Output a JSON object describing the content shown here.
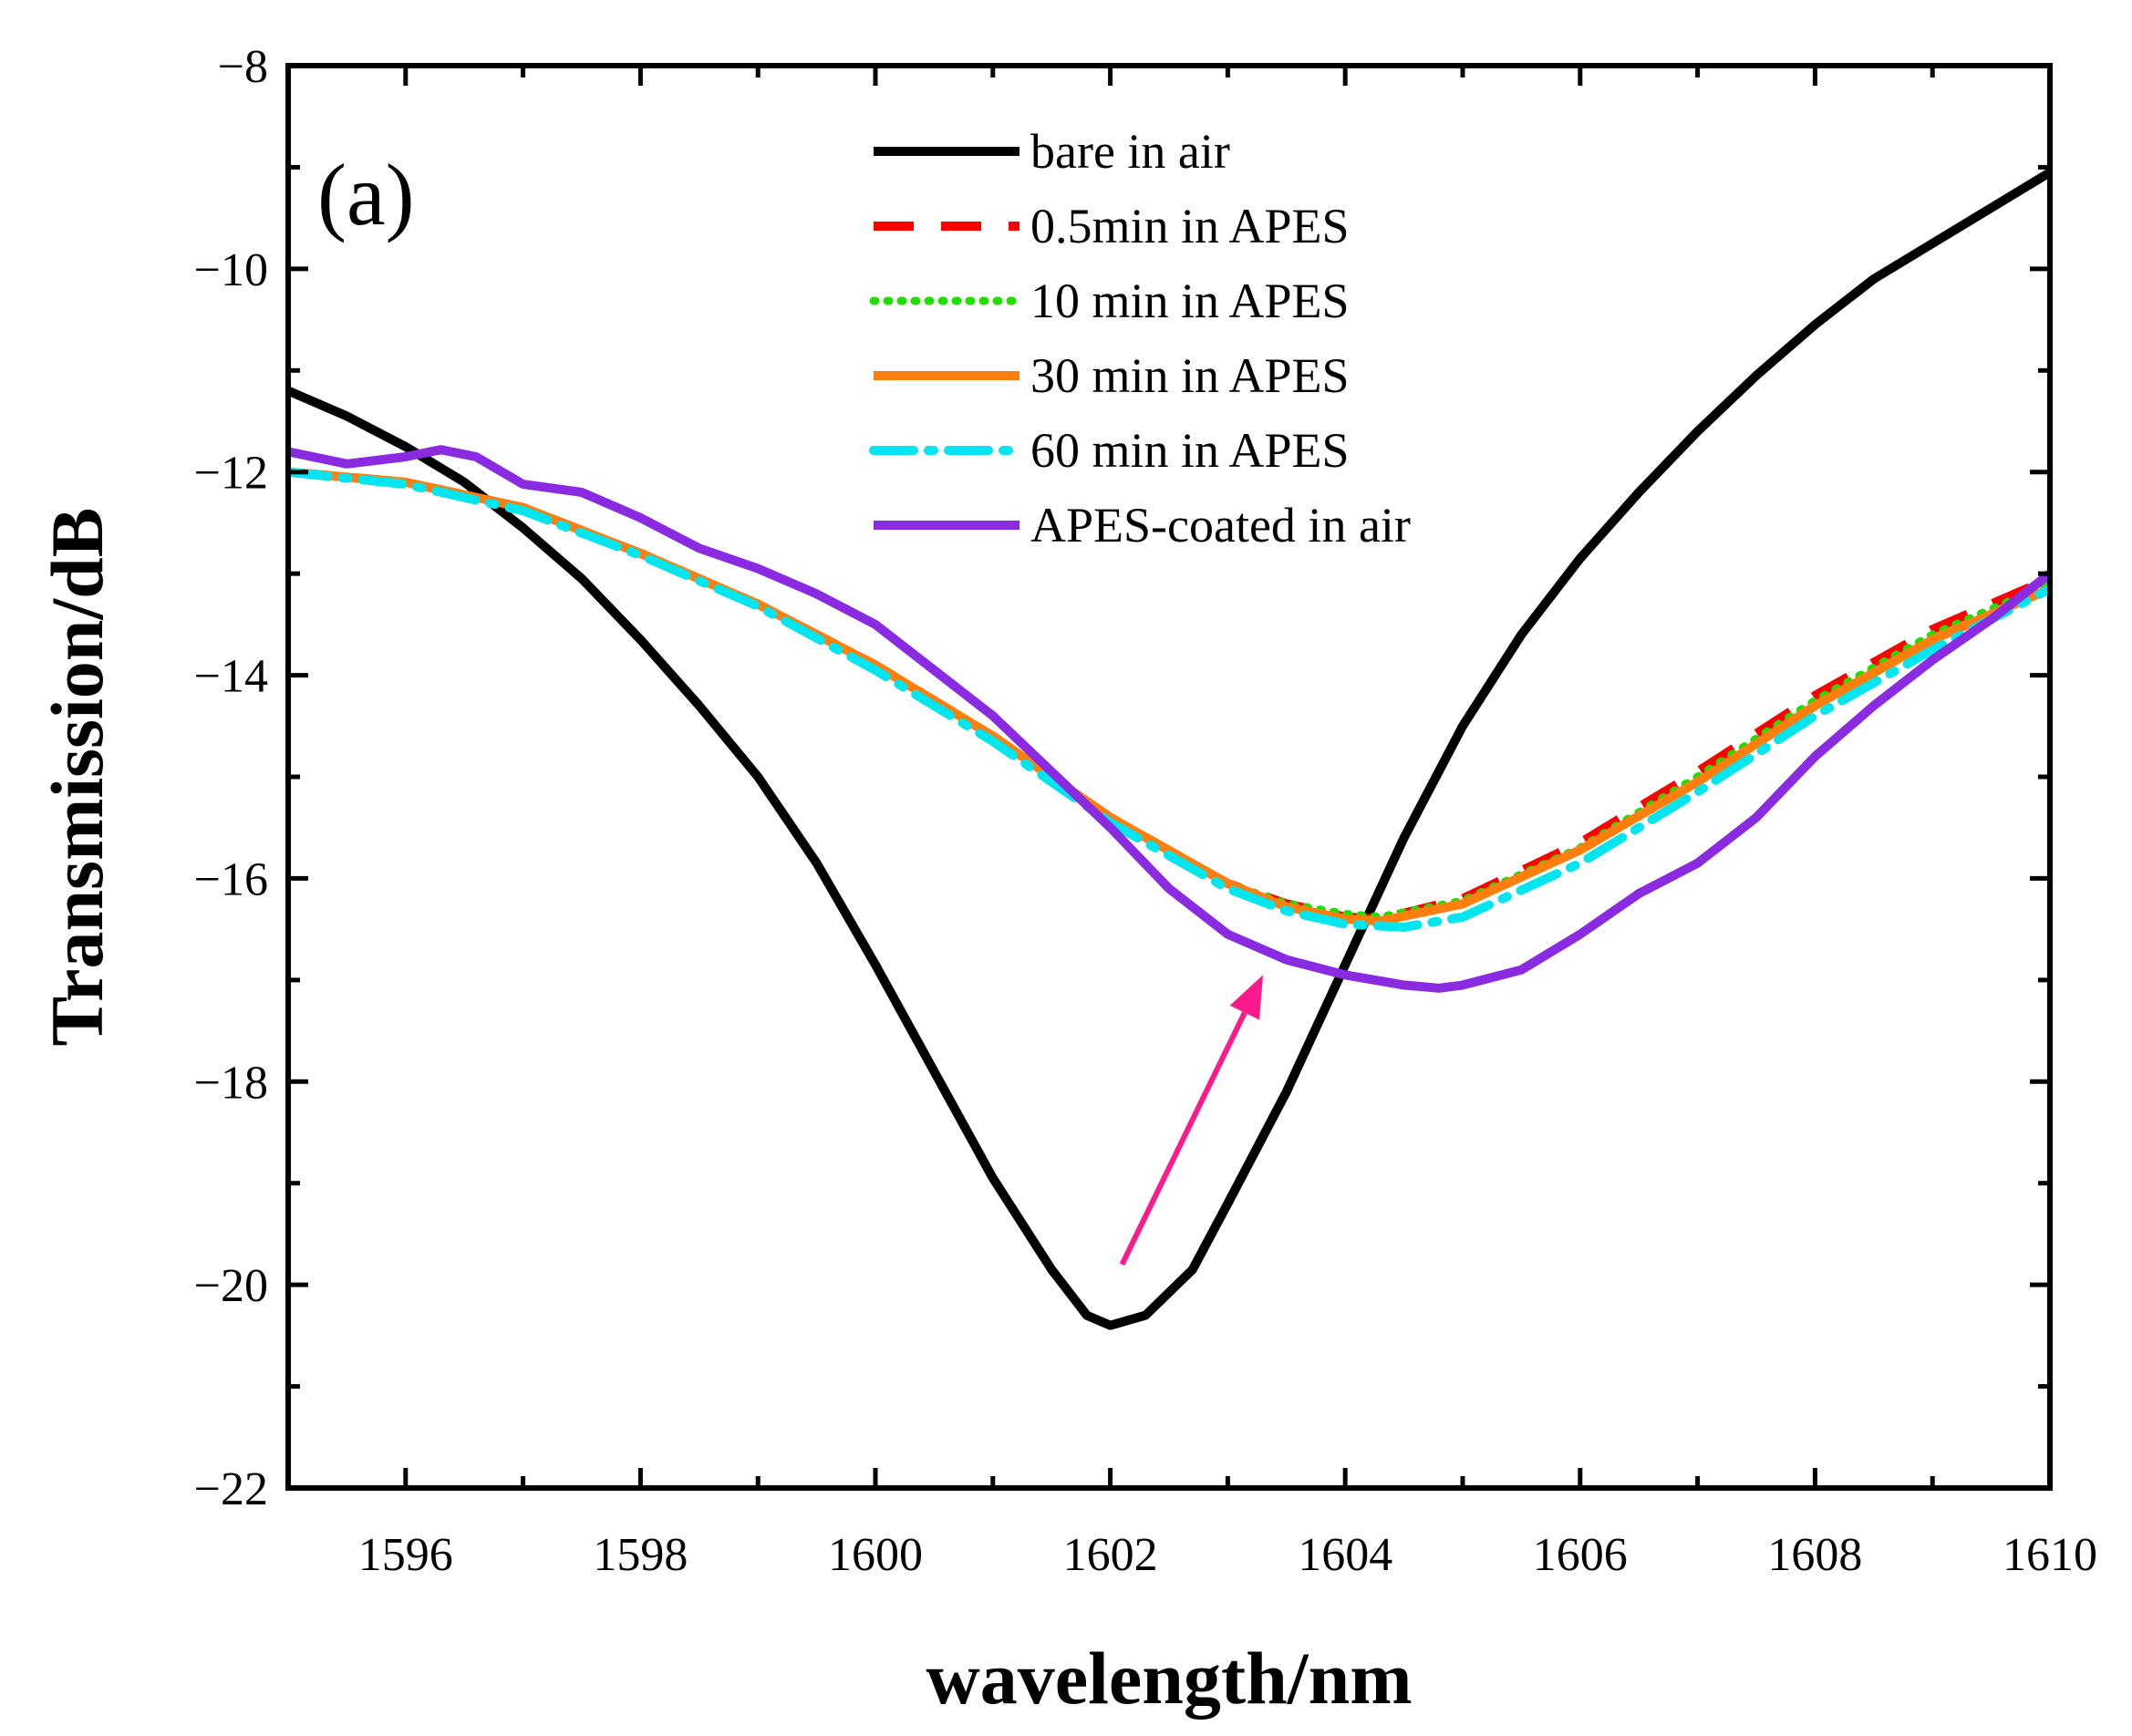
{
  "chart_data": {
    "type": "line",
    "panel_label": "(a)",
    "xlabel": "wavelength/nm",
    "ylabel": "Transmission/dB",
    "xlim": [
      1595,
      1610
    ],
    "ylim": [
      -22,
      -8
    ],
    "xticks": [
      1596,
      1598,
      1600,
      1602,
      1604,
      1606,
      1608,
      1610
    ],
    "yticks": [
      -8,
      -10,
      -12,
      -14,
      -16,
      -18,
      -20,
      -22
    ],
    "xtick_labels": [
      "1596",
      "1598",
      "1600",
      "1602",
      "1604",
      "1606",
      "1608",
      "1610"
    ],
    "ytick_labels": [
      "−8",
      "−10",
      "−12",
      "−14",
      "−16",
      "−18",
      "−20",
      "−22"
    ],
    "grid": false,
    "legend_position": "top",
    "series": [
      {
        "name": "bare in air",
        "color": "#000000",
        "style": "solid",
        "x": [
          1595.0,
          1595.5,
          1596.0,
          1596.5,
          1597.0,
          1597.5,
          1598.0,
          1598.5,
          1599.0,
          1599.5,
          1600.0,
          1600.5,
          1601.0,
          1601.5,
          1601.8,
          1602.0,
          1602.3,
          1602.7,
          1603.0,
          1603.5,
          1604.0,
          1604.5,
          1605.0,
          1605.5,
          1606.0,
          1606.5,
          1607.0,
          1607.5,
          1608.0,
          1608.5,
          1609.0,
          1609.5,
          1610.0
        ],
        "y": [
          -11.2,
          -11.45,
          -11.75,
          -12.1,
          -12.55,
          -13.05,
          -13.65,
          -14.3,
          -15.0,
          -15.85,
          -16.85,
          -17.9,
          -18.95,
          -19.85,
          -20.3,
          -20.4,
          -20.3,
          -19.85,
          -19.2,
          -18.1,
          -16.85,
          -15.6,
          -14.5,
          -13.6,
          -12.85,
          -12.2,
          -11.6,
          -11.05,
          -10.55,
          -10.1,
          -9.75,
          -9.4,
          -9.05
        ]
      },
      {
        "name": "0.5min in APES",
        "color": "#ff0000",
        "style": "dashed",
        "x": [
          1595.0,
          1596.0,
          1597.0,
          1598.0,
          1599.0,
          1600.0,
          1601.0,
          1602.0,
          1603.0,
          1603.5,
          1604.0,
          1604.3,
          1605.0,
          1606.0,
          1607.0,
          1608.0,
          1609.0,
          1610.0
        ],
        "y": [
          -12.0,
          -12.1,
          -12.35,
          -12.8,
          -13.3,
          -13.9,
          -14.6,
          -15.4,
          -16.05,
          -16.25,
          -16.38,
          -16.4,
          -16.2,
          -15.65,
          -14.95,
          -14.2,
          -13.55,
          -13.05
        ]
      },
      {
        "name": "10 min in APES",
        "color": "#22dd00",
        "style": "dotted",
        "x": [
          1595.0,
          1596.0,
          1597.0,
          1598.0,
          1599.0,
          1600.0,
          1601.0,
          1602.0,
          1603.0,
          1603.5,
          1604.0,
          1604.3,
          1605.0,
          1606.0,
          1607.0,
          1608.0,
          1609.0,
          1610.0
        ],
        "y": [
          -12.0,
          -12.1,
          -12.35,
          -12.8,
          -13.3,
          -13.9,
          -14.6,
          -15.4,
          -16.05,
          -16.25,
          -16.35,
          -16.38,
          -16.22,
          -15.7,
          -15.0,
          -14.25,
          -13.6,
          -13.1
        ]
      },
      {
        "name": "30 min in APES",
        "color": "#ff7f0e",
        "style": "solid",
        "x": [
          1595.0,
          1596.0,
          1597.0,
          1598.0,
          1599.0,
          1600.0,
          1601.0,
          1602.0,
          1603.0,
          1603.5,
          1604.0,
          1604.3,
          1605.0,
          1606.0,
          1607.0,
          1608.0,
          1609.0,
          1610.0
        ],
        "y": [
          -12.0,
          -12.1,
          -12.35,
          -12.8,
          -13.3,
          -13.9,
          -14.6,
          -15.4,
          -16.05,
          -16.28,
          -16.4,
          -16.42,
          -16.25,
          -15.72,
          -15.05,
          -14.3,
          -13.65,
          -13.15
        ]
      },
      {
        "name": "60 min in APES",
        "color": "#00e5ee",
        "style": "dashdot",
        "x": [
          1595.0,
          1596.0,
          1597.0,
          1598.0,
          1599.0,
          1600.0,
          1601.0,
          1602.0,
          1603.0,
          1603.5,
          1604.0,
          1604.5,
          1605.0,
          1606.0,
          1607.0,
          1608.0,
          1609.0,
          1610.0
        ],
        "y": [
          -12.0,
          -12.12,
          -12.38,
          -12.82,
          -13.32,
          -13.95,
          -14.65,
          -15.45,
          -16.1,
          -16.32,
          -16.45,
          -16.48,
          -16.38,
          -15.85,
          -15.15,
          -14.4,
          -13.75,
          -13.15
        ]
      },
      {
        "name": "APES-coated in air",
        "color": "#8a2be2",
        "style": "solid",
        "x": [
          1595.0,
          1595.5,
          1596.0,
          1596.3,
          1596.6,
          1597.0,
          1597.5,
          1598.0,
          1598.5,
          1599.0,
          1599.5,
          1600.0,
          1600.5,
          1601.0,
          1601.5,
          1602.0,
          1602.5,
          1603.0,
          1603.5,
          1604.0,
          1604.5,
          1604.8,
          1605.0,
          1605.5,
          1606.0,
          1606.5,
          1607.0,
          1607.5,
          1608.0,
          1608.5,
          1609.0,
          1609.5,
          1610.0
        ],
        "y": [
          -11.8,
          -11.92,
          -11.85,
          -11.78,
          -11.85,
          -12.12,
          -12.2,
          -12.45,
          -12.75,
          -12.95,
          -13.2,
          -13.5,
          -13.95,
          -14.4,
          -14.95,
          -15.5,
          -16.1,
          -16.55,
          -16.8,
          -16.95,
          -17.05,
          -17.08,
          -17.05,
          -16.9,
          -16.55,
          -16.15,
          -15.85,
          -15.4,
          -14.8,
          -14.3,
          -13.85,
          -13.45,
          -13.0
        ]
      }
    ],
    "annotations": [
      {
        "type": "arrow",
        "color": "#ff1a8c",
        "from": [
          1602.1,
          -19.8
        ],
        "to": [
          1603.3,
          -16.95
        ]
      }
    ]
  }
}
